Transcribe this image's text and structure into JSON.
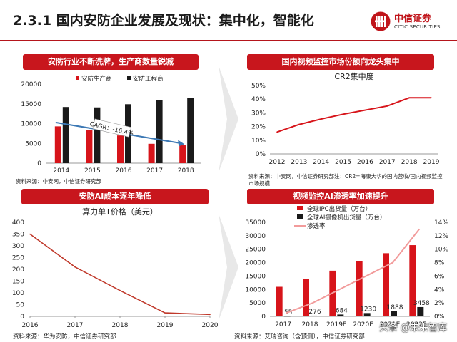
{
  "page": {
    "title": "2.3.1 国内安防企业发展及现状：集中化，智能化",
    "logo_cn": "中信证券",
    "logo_en": "CITIC SECURITIES",
    "watermark": "头条 @未来智库"
  },
  "panels": {
    "p1": {
      "header": "安防行业不断洗牌，生产商数量锐减",
      "source": "资料来源：中安网，中信证券研究部"
    },
    "p2": {
      "header": "国内视频监控市场份额向龙头集中",
      "source_line1": "资料来源：中安网，中信证券研究部注：CR2=海康大华的国内营收/国内视频监控",
      "source_line2": "市场规模"
    },
    "p3": {
      "header": "安防AI成本逐年降低",
      "source": "资料来源：华为安防，中信证券研究部"
    },
    "p4": {
      "header": "视频监控AI渗透率加速提升",
      "source": "资料来源：艾瑞咨询（含预测），中信证券研究部"
    }
  },
  "chart_data": [
    {
      "type": "bar",
      "categories": [
        "2014",
        "2015",
        "2016",
        "2017",
        "2018"
      ],
      "series": [
        {
          "name": "安防生产商",
          "color": "#d7141a",
          "values": [
            9300,
            8300,
            7000,
            4900,
            4500
          ]
        },
        {
          "name": "安防工程商",
          "color": "#1a1a1a",
          "values": [
            14200,
            14100,
            14900,
            15900,
            16400
          ]
        }
      ],
      "ylim": [
        0,
        20000
      ],
      "yticks": [
        0,
        5000,
        10000,
        15000,
        20000
      ],
      "annotation": "CAGR：-16.4%",
      "legend": "top"
    },
    {
      "type": "line",
      "title": "CR2集中度",
      "x": [
        "2012",
        "2013",
        "2014",
        "2015",
        "2016",
        "2017",
        "2018",
        "2019"
      ],
      "values": [
        16,
        21.5,
        25.5,
        29,
        32,
        35,
        41,
        41
      ],
      "color": "#d7141a",
      "ylim": [
        0,
        50
      ],
      "yticks": [
        "0%",
        "10%",
        "20%",
        "30%",
        "40%",
        "50%"
      ]
    },
    {
      "type": "line",
      "title": "算力单T价格（美元）",
      "x": [
        "2016",
        "2017",
        "2018",
        "2019",
        "2020"
      ],
      "values": [
        350,
        210,
        110,
        15,
        8
      ],
      "color": "#c0392b",
      "ylim": [
        0,
        400
      ],
      "yticks": [
        0,
        50,
        100,
        150,
        200,
        250,
        300,
        350,
        400
      ]
    },
    {
      "type": "bar",
      "categories": [
        "2017",
        "2018",
        "2019E",
        "2020E",
        "2021E",
        "2022E"
      ],
      "xticklabels": [
        "2017",
        "2018",
        "2019E",
        "2020E",
        "2021E",
        "2022E"
      ],
      "series": [
        {
          "name": "全球IPC出货量（万台）",
          "color": "#d7141a",
          "values": [
            11000,
            13800,
            17000,
            20500,
            23500,
            26500
          ]
        },
        {
          "name": "全球AI摄像机出货量（万台）",
          "color": "#1a1a1a",
          "values": [
            55,
            276,
            684,
            1230,
            1888,
            3458
          ]
        },
        {
          "name": "渗透率",
          "type": "line",
          "color": "#f29b9b",
          "values": [
            0.5,
            2.0,
            4.0,
            6.0,
            8.0,
            13.0
          ]
        }
      ],
      "data_labels": [
        "55",
        "276",
        "684",
        "1230",
        "1888",
        "3458"
      ],
      "ylim": [
        0,
        35000
      ],
      "yticks": [
        0,
        5000,
        10000,
        15000,
        20000,
        25000,
        30000,
        35000
      ],
      "y2lim": [
        0,
        14
      ],
      "y2ticks": [
        "0%",
        "2%",
        "4%",
        "6%",
        "8%",
        "10%",
        "12%",
        "14%"
      ],
      "legend": "top-left"
    }
  ]
}
